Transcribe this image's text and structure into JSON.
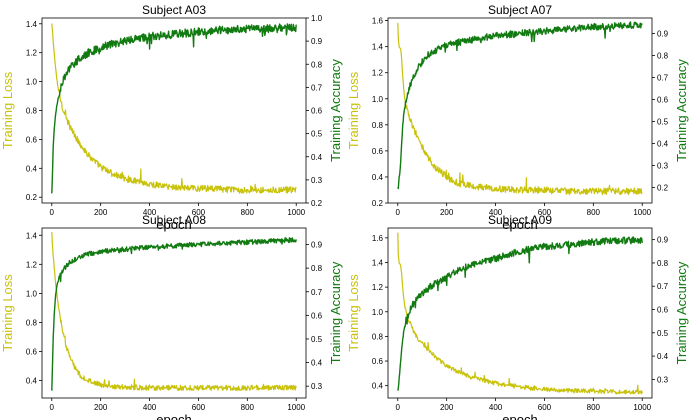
{
  "colors": {
    "loss": "#c8c20a",
    "accuracy": "#117a11",
    "axis": "#000000"
  },
  "chart_data": [
    {
      "type": "line",
      "title": "Subject A03",
      "xlabel": "epoch",
      "ylabel_left": "Training Loss",
      "ylabel_right": "Training Accuracy",
      "xlim": [
        -40,
        1040
      ],
      "ylim_left": [
        0.16,
        1.44
      ],
      "ylim_right": [
        0.2,
        1.0
      ],
      "xticks": [
        0,
        200,
        400,
        600,
        800,
        1000
      ],
      "yticks_left": [
        0.2,
        0.4,
        0.6,
        0.8,
        1.0,
        1.2,
        1.4
      ],
      "yticks_right": [
        0.2,
        0.3,
        0.4,
        0.5,
        0.6,
        0.7,
        0.8,
        0.9,
        1.0
      ],
      "grid": false,
      "series": [
        {
          "name": "Training Loss",
          "axis": "left",
          "x": [
            0,
            2,
            5,
            10,
            15,
            20,
            30,
            40,
            50,
            60,
            80,
            100,
            120,
            150,
            200,
            250,
            300,
            350,
            400,
            450,
            500,
            550,
            600,
            650,
            700,
            750,
            800,
            850,
            900,
            950,
            1000
          ],
          "y": [
            1.4,
            1.36,
            1.3,
            1.2,
            1.1,
            1.02,
            0.92,
            0.85,
            0.79,
            0.74,
            0.67,
            0.61,
            0.56,
            0.49,
            0.41,
            0.36,
            0.33,
            0.31,
            0.29,
            0.28,
            0.27,
            0.265,
            0.26,
            0.26,
            0.255,
            0.25,
            0.25,
            0.25,
            0.25,
            0.25,
            0.25
          ],
          "noise": 0.045
        },
        {
          "name": "Training Accuracy",
          "axis": "right",
          "x": [
            0,
            2,
            5,
            10,
            15,
            20,
            30,
            40,
            50,
            60,
            80,
            100,
            120,
            150,
            200,
            250,
            300,
            350,
            400,
            450,
            500,
            550,
            600,
            650,
            700,
            750,
            800,
            850,
            900,
            950,
            1000
          ],
          "y": [
            0.24,
            0.3,
            0.42,
            0.52,
            0.58,
            0.62,
            0.67,
            0.71,
            0.74,
            0.76,
            0.79,
            0.81,
            0.83,
            0.85,
            0.87,
            0.89,
            0.9,
            0.91,
            0.92,
            0.925,
            0.93,
            0.935,
            0.94,
            0.945,
            0.95,
            0.95,
            0.952,
            0.955,
            0.955,
            0.957,
            0.958
          ],
          "noise": 0.035
        }
      ]
    },
    {
      "type": "line",
      "title": "Subject A07",
      "xlabel": "epoch",
      "ylabel_left": "Training Loss",
      "ylabel_right": "Training Accuracy",
      "xlim": [
        -40,
        1040
      ],
      "ylim_left": [
        0.2,
        1.62
      ],
      "ylim_right": [
        0.13,
        0.97
      ],
      "xticks": [
        0,
        200,
        400,
        600,
        800,
        1000
      ],
      "yticks_left": [
        0.2,
        0.4,
        0.6,
        0.8,
        1.0,
        1.2,
        1.4,
        1.6
      ],
      "yticks_right": [
        0.2,
        0.3,
        0.4,
        0.5,
        0.6,
        0.7,
        0.8,
        0.9
      ],
      "grid": false,
      "series": [
        {
          "name": "Training Loss",
          "axis": "left",
          "x": [
            0,
            2,
            5,
            8,
            12,
            16,
            20,
            25,
            30,
            40,
            50,
            60,
            80,
            100,
            120,
            150,
            200,
            250,
            300,
            400,
            500,
            600,
            700,
            800,
            900,
            1000
          ],
          "y": [
            1.58,
            1.46,
            1.4,
            1.4,
            1.38,
            1.3,
            1.18,
            1.06,
            0.98,
            0.9,
            0.84,
            0.79,
            0.71,
            0.63,
            0.56,
            0.48,
            0.4,
            0.35,
            0.33,
            0.31,
            0.3,
            0.3,
            0.29,
            0.29,
            0.29,
            0.29
          ],
          "noise": 0.05
        },
        {
          "name": "Training Accuracy",
          "axis": "right",
          "x": [
            0,
            2,
            5,
            8,
            12,
            16,
            20,
            25,
            30,
            40,
            50,
            60,
            80,
            100,
            120,
            150,
            200,
            250,
            300,
            400,
            500,
            600,
            700,
            800,
            900,
            1000
          ],
          "y": [
            0.2,
            0.2,
            0.24,
            0.26,
            0.32,
            0.4,
            0.48,
            0.54,
            0.58,
            0.62,
            0.66,
            0.69,
            0.74,
            0.77,
            0.8,
            0.82,
            0.85,
            0.86,
            0.87,
            0.89,
            0.9,
            0.91,
            0.92,
            0.93,
            0.935,
            0.94
          ],
          "noise": 0.03
        }
      ]
    },
    {
      "type": "line",
      "title": "Subject A08",
      "xlabel": "epoch",
      "ylabel_left": "Training Loss",
      "ylabel_right": "Training Accuracy",
      "xlim": [
        -40,
        1040
      ],
      "ylim_left": [
        0.28,
        1.45
      ],
      "ylim_right": [
        0.25,
        0.97
      ],
      "xticks": [
        0,
        200,
        400,
        600,
        800,
        1000
      ],
      "yticks_left": [
        0.4,
        0.6,
        0.8,
        1.0,
        1.2,
        1.4
      ],
      "yticks_right": [
        0.3,
        0.4,
        0.5,
        0.6,
        0.7,
        0.8,
        0.9
      ],
      "grid": false,
      "series": [
        {
          "name": "Training Loss",
          "axis": "left",
          "x": [
            0,
            2,
            5,
            10,
            15,
            20,
            30,
            40,
            50,
            60,
            80,
            100,
            120,
            150,
            200,
            250,
            300,
            400,
            500,
            600,
            700,
            800,
            900,
            1000
          ],
          "y": [
            1.42,
            1.35,
            1.28,
            1.18,
            1.08,
            1.0,
            0.88,
            0.78,
            0.7,
            0.63,
            0.54,
            0.47,
            0.43,
            0.4,
            0.37,
            0.36,
            0.355,
            0.35,
            0.35,
            0.35,
            0.35,
            0.35,
            0.35,
            0.35
          ],
          "noise": 0.035
        },
        {
          "name": "Training Accuracy",
          "axis": "right",
          "x": [
            0,
            2,
            5,
            10,
            15,
            20,
            30,
            40,
            50,
            60,
            80,
            100,
            120,
            150,
            200,
            250,
            300,
            400,
            500,
            600,
            700,
            800,
            900,
            1000
          ],
          "y": [
            0.28,
            0.36,
            0.48,
            0.6,
            0.68,
            0.72,
            0.76,
            0.78,
            0.8,
            0.81,
            0.83,
            0.84,
            0.85,
            0.86,
            0.87,
            0.875,
            0.88,
            0.89,
            0.895,
            0.9,
            0.905,
            0.91,
            0.915,
            0.92
          ],
          "noise": 0.02
        }
      ]
    },
    {
      "type": "line",
      "title": "Subject A09",
      "xlabel": "epoch",
      "ylabel_left": "Training Loss",
      "ylabel_right": "Training Accuracy",
      "xlim": [
        -40,
        1040
      ],
      "ylim_left": [
        0.3,
        1.68
      ],
      "ylim_right": [
        0.22,
        0.95
      ],
      "xticks": [
        0,
        200,
        400,
        600,
        800,
        1000
      ],
      "yticks_left": [
        0.4,
        0.6,
        0.8,
        1.0,
        1.2,
        1.4,
        1.6
      ],
      "yticks_right": [
        0.3,
        0.4,
        0.5,
        0.6,
        0.7,
        0.8,
        0.9
      ],
      "grid": false,
      "series": [
        {
          "name": "Training Loss",
          "axis": "left",
          "x": [
            0,
            2,
            5,
            8,
            12,
            16,
            20,
            25,
            30,
            40,
            50,
            60,
            80,
            100,
            150,
            200,
            250,
            300,
            400,
            500,
            600,
            700,
            800,
            900,
            1000
          ],
          "y": [
            1.64,
            1.46,
            1.4,
            1.39,
            1.37,
            1.3,
            1.2,
            1.1,
            1.04,
            0.96,
            0.91,
            0.86,
            0.79,
            0.74,
            0.64,
            0.56,
            0.51,
            0.47,
            0.42,
            0.39,
            0.37,
            0.36,
            0.355,
            0.35,
            0.35
          ],
          "noise": 0.035
        },
        {
          "name": "Training Accuracy",
          "axis": "right",
          "x": [
            0,
            2,
            5,
            8,
            12,
            16,
            20,
            25,
            30,
            40,
            50,
            60,
            80,
            100,
            150,
            200,
            250,
            300,
            400,
            500,
            600,
            700,
            800,
            900,
            1000
          ],
          "y": [
            0.25,
            0.26,
            0.3,
            0.33,
            0.38,
            0.43,
            0.47,
            0.51,
            0.54,
            0.57,
            0.6,
            0.62,
            0.65,
            0.67,
            0.71,
            0.74,
            0.77,
            0.79,
            0.82,
            0.85,
            0.87,
            0.88,
            0.89,
            0.895,
            0.9
          ],
          "noise": 0.03
        }
      ]
    }
  ]
}
